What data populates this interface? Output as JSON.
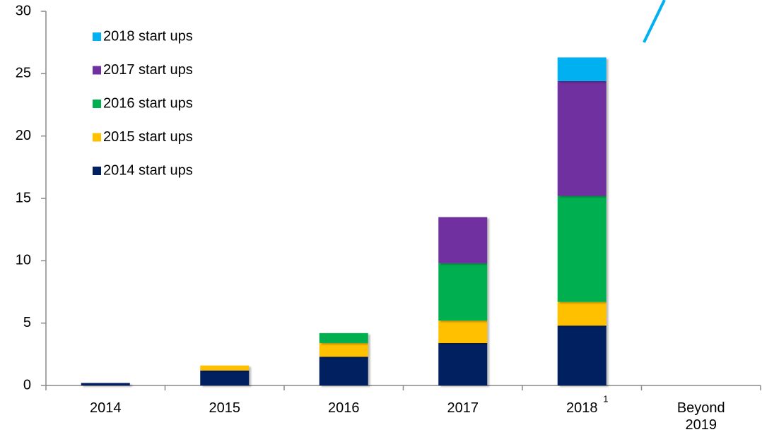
{
  "chart_data": {
    "type": "stacked_bar",
    "categories": [
      "2014",
      "2015",
      "2016",
      "2017",
      "2018",
      "Beyond 2019"
    ],
    "category_notes": [
      null,
      null,
      null,
      null,
      "1",
      null
    ],
    "series": [
      {
        "name": "2014 start ups",
        "color": "#002060",
        "values": [
          0.2,
          1.2,
          2.3,
          3.4,
          4.8,
          null
        ]
      },
      {
        "name": "2015 start ups",
        "color": "#ffc000",
        "values": [
          null,
          0.4,
          1.1,
          1.8,
          1.9,
          null
        ]
      },
      {
        "name": "2016 start ups",
        "color": "#00b050",
        "values": [
          null,
          null,
          0.8,
          4.6,
          8.5,
          null
        ]
      },
      {
        "name": "2017 start ups",
        "color": "#7030a0",
        "values": [
          null,
          null,
          null,
          3.7,
          9.2,
          null
        ]
      },
      {
        "name": "2018 start ups",
        "color": "#00b0f0",
        "values": [
          null,
          null,
          null,
          null,
          1.9,
          null
        ]
      }
    ],
    "ylim": [
      0,
      30
    ],
    "yticks": [
      0,
      5,
      10,
      15,
      20,
      25,
      30
    ],
    "legend": "upper-left"
  }
}
